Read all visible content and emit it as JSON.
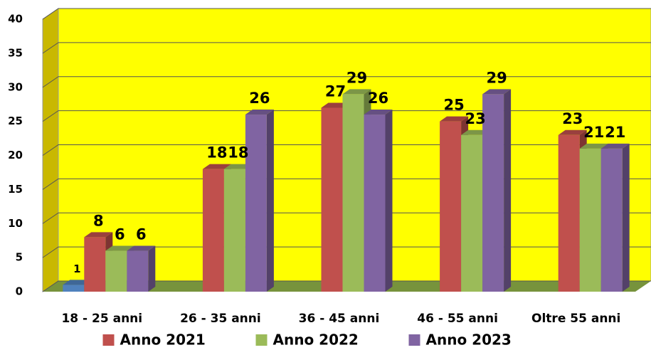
{
  "chart_data": {
    "type": "bar",
    "categories": [
      "18 - 25 anni",
      "26 - 35 anni",
      "36 - 45 anni",
      "46 - 55 anni",
      "Oltre 55 anni"
    ],
    "series": [
      {
        "color": "#4f81bd",
        "values": [
          1,
          null,
          null,
          null,
          null
        ]
      },
      {
        "name": "Anno 2021",
        "color": "#c0504d",
        "values": [
          8,
          18,
          27,
          25,
          23
        ]
      },
      {
        "name": "Anno 2022",
        "color": "#9bbb59",
        "values": [
          6,
          18,
          29,
          23,
          21
        ]
      },
      {
        "name": "Anno 2023",
        "color": "#8064a2",
        "values": [
          6,
          26,
          26,
          29,
          21
        ]
      }
    ],
    "ylim": [
      0,
      40
    ],
    "yticks": [
      0,
      5,
      10,
      15,
      20,
      25,
      30,
      35,
      40
    ],
    "grid": true,
    "legend": "bottom"
  }
}
